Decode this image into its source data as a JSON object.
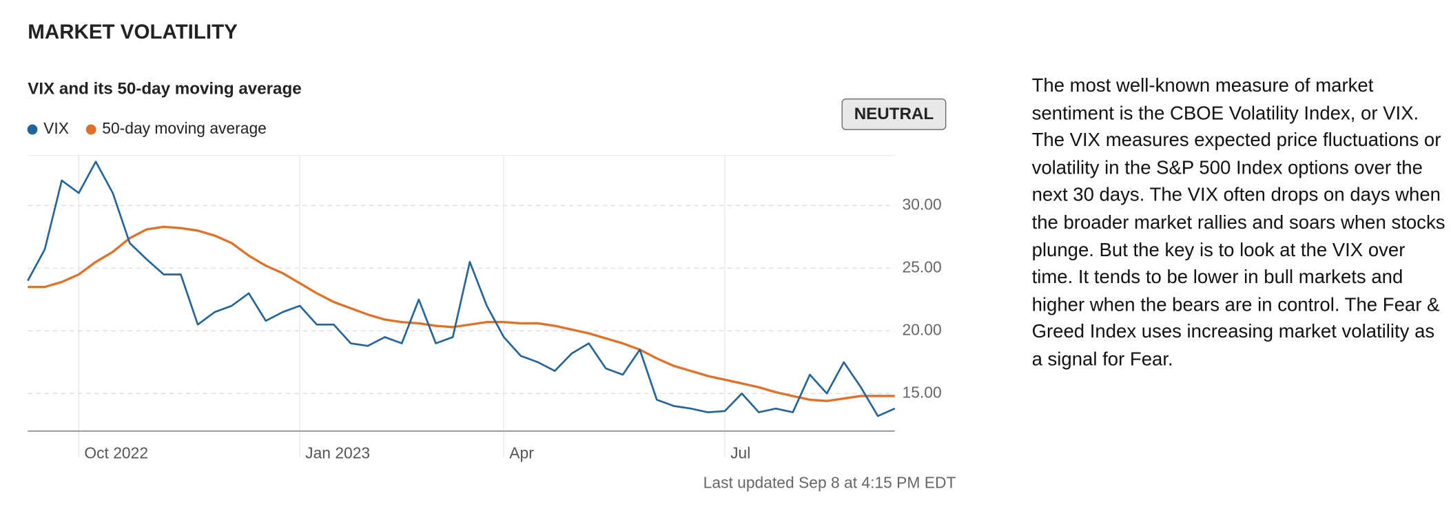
{
  "heading": "MARKET VOLATILITY",
  "description": "The most well-known measure of market sentiment is the CBOE Volatility Index, or VIX. The VIX measures expected price fluctuations or volatility in the S&P 500 Index options over the next 30 days. The VIX often drops on days when the broader market rallies and soars when stocks plunge. But the key is to look at the VIX over time. It tends to be lower in bull markets and higher when the bears are in control. The Fear & Greed Index uses increasing market volatility as a signal for Fear.",
  "chart_data": {
    "type": "line",
    "title": "VIX and its 50-day moving average",
    "status": "NEUTRAL",
    "footnote": "Last updated Sep 8 at 4:15 PM EDT",
    "categories": [
      null,
      null,
      null,
      "Oct 2022",
      null,
      null,
      null,
      null,
      null,
      null,
      null,
      null,
      null,
      null,
      null,
      null,
      "Jan 2023",
      null,
      null,
      null,
      null,
      null,
      null,
      null,
      null,
      null,
      null,
      null,
      "Apr",
      null,
      null,
      null,
      null,
      null,
      null,
      null,
      null,
      null,
      null,
      null,
      null,
      "Jul",
      null,
      null,
      null,
      null,
      null,
      null,
      null,
      null,
      null,
      null
    ],
    "series": [
      {
        "name": "VIX",
        "color": "#23649b",
        "values": [
          24,
          26.5,
          32,
          31,
          33.5,
          31,
          27,
          25.7,
          24.5,
          24.5,
          20.5,
          21.5,
          22,
          23,
          20.8,
          21.5,
          22,
          20.5,
          20.5,
          19,
          18.8,
          19.5,
          19,
          22.5,
          19,
          19.5,
          25.5,
          22,
          19.5,
          18,
          17.5,
          16.8,
          18.2,
          19,
          17,
          16.5,
          18.5,
          14.5,
          14,
          13.8,
          13.5,
          13.6,
          15,
          13.5,
          13.8,
          13.5,
          16.5,
          15,
          17.5,
          15.5,
          13.2,
          13.8
        ]
      },
      {
        "name": "50-day moving average",
        "color": "#e07128",
        "values": [
          23.5,
          23.5,
          23.9,
          24.5,
          25.5,
          26.3,
          27.4,
          28.1,
          28.3,
          28.2,
          28,
          27.6,
          27,
          26,
          25.2,
          24.6,
          23.8,
          23,
          22.3,
          21.8,
          21.3,
          20.9,
          20.7,
          20.6,
          20.4,
          20.3,
          20.5,
          20.7,
          20.7,
          20.6,
          20.6,
          20.4,
          20.1,
          19.8,
          19.4,
          19,
          18.5,
          17.8,
          17.2,
          16.8,
          16.4,
          16.1,
          15.8,
          15.5,
          15.1,
          14.8,
          14.5,
          14.4,
          14.6,
          14.8,
          14.8,
          14.8
        ]
      }
    ],
    "ylim": [
      12,
      34
    ],
    "yticks": [
      {
        "value": 15,
        "label": "15.00"
      },
      {
        "value": 20,
        "label": "20.00"
      },
      {
        "value": 25,
        "label": "25.00"
      },
      {
        "value": 30,
        "label": "30.00"
      }
    ],
    "grid": true
  }
}
